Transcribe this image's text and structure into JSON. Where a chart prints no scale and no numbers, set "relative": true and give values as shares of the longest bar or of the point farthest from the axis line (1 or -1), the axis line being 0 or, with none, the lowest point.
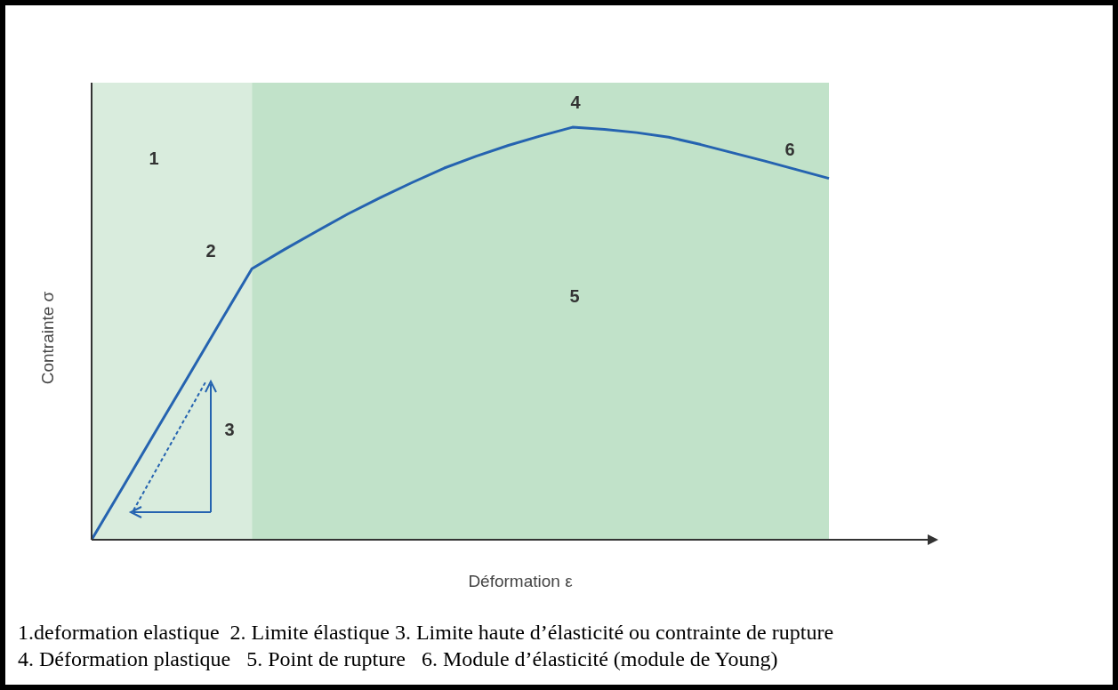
{
  "chart_data": {
    "type": "line",
    "relative": true,
    "xlabel": "Déformation ε",
    "ylabel": "Contrainte σ",
    "categories": [
      null,
      null,
      null,
      null,
      null,
      null,
      null,
      null,
      null,
      null,
      null,
      null,
      null,
      null,
      null,
      null,
      null,
      null,
      null,
      null,
      null,
      null,
      null,
      null
    ],
    "series": [
      {
        "color": "#2563b0",
        "values": [
          0,
          0.131,
          0.263,
          0.394,
          0.526,
          0.657,
          0.703,
          0.747,
          0.79,
          0.829,
          0.866,
          0.901,
          0.93,
          0.956,
          0.979,
          1,
          0.995,
          0.987,
          0.976,
          0.958,
          0.938,
          0.918,
          0.897,
          0.876
        ]
      }
    ],
    "marker": "none",
    "line_style": "solid",
    "grid": false,
    "legend": false,
    "annotations": [
      "1",
      "2",
      "3",
      "4",
      "5",
      "6",
      "1.deformation elastique  2. Limite élastique 3. Limite haute d’élasticité ou contrainte de rupture",
      "4. Déformation plastique   5. Point de rupture   6. Module d’élasticité (module de Young)"
    ]
  }
}
